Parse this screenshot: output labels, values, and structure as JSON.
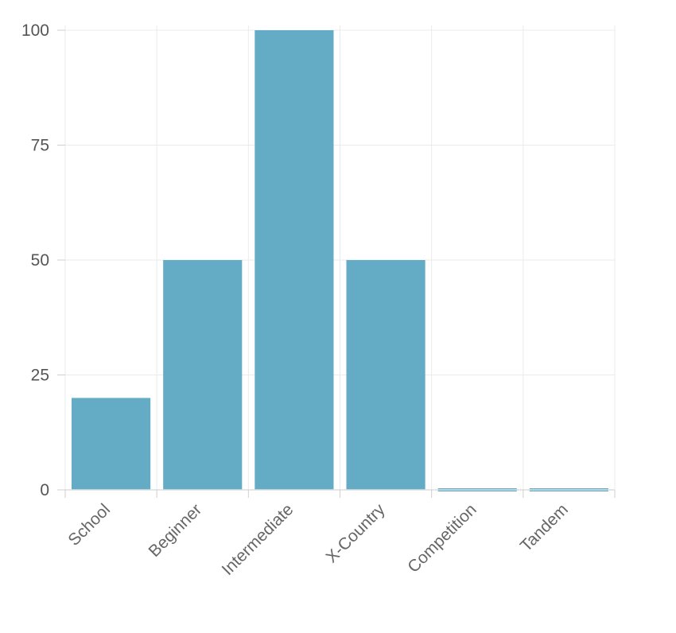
{
  "chart_data": {
    "type": "bar",
    "categories": [
      "School",
      "Beginner",
      "Intermediate",
      "X-Country",
      "Competition",
      "Tandem"
    ],
    "values": [
      20,
      50,
      100,
      50,
      0,
      0
    ],
    "ylim": [
      0,
      100
    ],
    "yticks": [
      0,
      25,
      50,
      75,
      100
    ],
    "grid": true,
    "bar_color": "#64acc6",
    "title": "",
    "xlabel": "",
    "ylabel": ""
  }
}
